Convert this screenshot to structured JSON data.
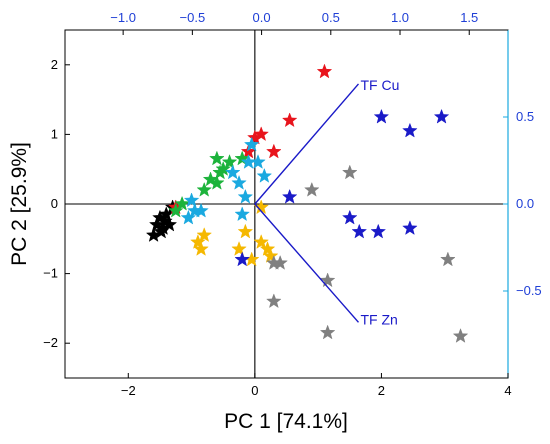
{
  "chart_data": {
    "type": "scatter",
    "xlabel": "PC 1 [74.1%]",
    "ylabel": "PC 2 [25.9%]",
    "xlim": [
      -3,
      4
    ],
    "ylim": [
      -2.5,
      2.5
    ],
    "x_ticks": [
      -2,
      0,
      2,
      4
    ],
    "y_ticks": [
      -2,
      -1,
      0,
      1,
      2
    ],
    "top_axis": {
      "lim": [
        -1.42,
        1.78
      ],
      "ticks": [
        -1.0,
        -0.5,
        0.0,
        0.5,
        1.0,
        1.5
      ],
      "tick_labels": [
        "−1.0",
        "−0.5",
        "0.0",
        "0.5",
        "1.0",
        "1.5"
      ],
      "color": "#1f3fd6"
    },
    "right_axis": {
      "lim": [
        -1.0,
        1.0
      ],
      "ticks": [
        0.5,
        0.0,
        -0.5
      ],
      "tick_labels": [
        "0.5",
        "0.0",
        "−0.5"
      ],
      "color": "#1f3fd6"
    },
    "tick_labels_x": [
      "−2",
      "0",
      "2",
      "4"
    ],
    "tick_labels_y": [
      "−2",
      "−1",
      "0",
      "1",
      "2"
    ],
    "marker": "star",
    "zero_lines": true,
    "grid": false,
    "series": [
      {
        "color": "#000000",
        "points": [
          [
            -1.6,
            -0.45
          ],
          [
            -1.55,
            -0.3
          ],
          [
            -1.5,
            -0.2
          ],
          [
            -1.45,
            -0.35
          ],
          [
            -1.4,
            -0.15
          ],
          [
            -1.35,
            -0.3
          ],
          [
            -1.3,
            -0.05
          ],
          [
            -1.48,
            -0.4
          ],
          [
            -1.42,
            -0.25
          ]
        ]
      },
      {
        "color": "#e8141c",
        "points": [
          [
            1.1,
            1.9
          ],
          [
            0.55,
            1.2
          ],
          [
            0.3,
            0.75
          ],
          [
            0.1,
            1.0
          ],
          [
            0.0,
            0.95
          ],
          [
            -0.1,
            0.75
          ],
          [
            -1.25,
            -0.05
          ]
        ]
      },
      {
        "color": "#1cb33b",
        "points": [
          [
            -0.6,
            0.65
          ],
          [
            -0.4,
            0.6
          ],
          [
            -0.2,
            0.65
          ],
          [
            -0.5,
            0.5
          ],
          [
            -0.55,
            0.45
          ],
          [
            -0.7,
            0.35
          ],
          [
            -0.8,
            0.2
          ],
          [
            -0.6,
            0.3
          ],
          [
            -1.15,
            0.0
          ],
          [
            -1.25,
            -0.1
          ]
        ]
      },
      {
        "color": "#1aa9e0",
        "points": [
          [
            -0.05,
            0.85
          ],
          [
            -0.1,
            0.6
          ],
          [
            0.05,
            0.6
          ],
          [
            0.15,
            0.4
          ],
          [
            -0.35,
            0.45
          ],
          [
            -0.25,
            0.3
          ],
          [
            -0.15,
            0.1
          ],
          [
            -1.0,
            0.05
          ],
          [
            -0.95,
            -0.1
          ],
          [
            -0.85,
            -0.1
          ],
          [
            -1.05,
            -0.2
          ],
          [
            -0.2,
            -0.15
          ]
        ]
      },
      {
        "color": "#f5b800",
        "points": [
          [
            0.1,
            -0.05
          ],
          [
            -0.8,
            -0.45
          ],
          [
            -0.9,
            -0.55
          ],
          [
            -0.85,
            -0.65
          ],
          [
            -0.15,
            -0.4
          ],
          [
            -0.25,
            -0.65
          ],
          [
            -0.05,
            -0.8
          ],
          [
            0.1,
            -0.55
          ],
          [
            0.2,
            -0.65
          ],
          [
            0.25,
            -0.75
          ]
        ]
      },
      {
        "color": "#1a1ac8",
        "points": [
          [
            2.0,
            1.25
          ],
          [
            2.45,
            1.05
          ],
          [
            2.95,
            1.25
          ],
          [
            0.55,
            0.1
          ],
          [
            1.5,
            -0.2
          ],
          [
            1.65,
            -0.4
          ],
          [
            1.95,
            -0.4
          ],
          [
            2.45,
            -0.35
          ],
          [
            -0.2,
            -0.8
          ]
        ]
      },
      {
        "color": "#808080",
        "points": [
          [
            1.5,
            0.45
          ],
          [
            0.9,
            0.2
          ],
          [
            0.3,
            -0.85
          ],
          [
            0.4,
            -0.85
          ],
          [
            1.15,
            -1.1
          ],
          [
            0.3,
            -1.4
          ],
          [
            1.15,
            -1.85
          ],
          [
            3.05,
            -0.8
          ],
          [
            3.25,
            -1.9
          ]
        ]
      }
    ],
    "loadings": [
      {
        "label": "TF Cu",
        "end": [
          0.7,
          0.69
        ],
        "color": "#1a1ac8"
      },
      {
        "label": "TF Zn",
        "end": [
          0.7,
          -0.68
        ],
        "color": "#1a1ac8"
      }
    ]
  }
}
